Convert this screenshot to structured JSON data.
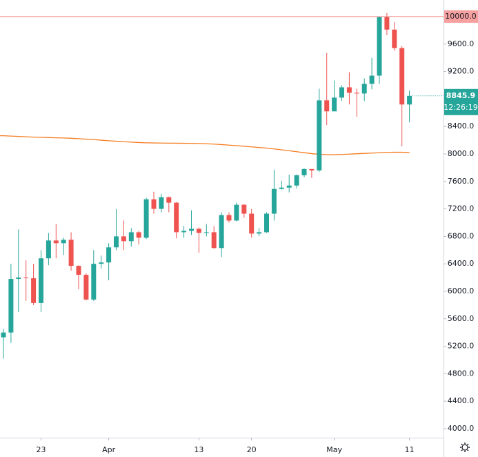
{
  "chart_data": {
    "type": "candlestick",
    "categories": [
      null,
      null,
      null,
      null,
      null,
      "23",
      null,
      null,
      null,
      null,
      null,
      null,
      null,
      null,
      "Apr",
      null,
      null,
      null,
      null,
      null,
      null,
      null,
      null,
      null,
      null,
      null,
      "13",
      null,
      null,
      null,
      null,
      null,
      null,
      "20",
      null,
      null,
      null,
      null,
      null,
      null,
      null,
      null,
      null,
      null,
      "May",
      null,
      null,
      null,
      null,
      null,
      null,
      null,
      null,
      null,
      "11"
    ],
    "open": [
      5330,
      5400,
      6180,
      6200,
      6190,
      5830,
      6480,
      6740,
      6700,
      6750,
      6370,
      6240,
      5880,
      6400,
      6420,
      6640,
      6800,
      6730,
      6860,
      6780,
      7340,
      7200,
      7370,
      7290,
      6860,
      6880,
      6910,
      6850,
      6860,
      6630,
      7110,
      7030,
      7260,
      7130,
      6840,
      6860,
      7130,
      7490,
      7510,
      7540,
      7690,
      7780,
      7760,
      8780,
      8620,
      8820,
      8970,
      8890,
      8880,
      9020,
      9140,
      9990,
      9810,
      9540,
      8720
    ],
    "high": [
      5450,
      6400,
      6900,
      6450,
      6400,
      6600,
      6850,
      6980,
      6780,
      6860,
      6380,
      6260,
      6600,
      6520,
      6700,
      7200,
      7030,
      6920,
      6880,
      7360,
      7450,
      7420,
      7380,
      7300,
      6950,
      7180,
      6930,
      6980,
      6950,
      7150,
      7150,
      7290,
      7270,
      7200,
      6920,
      7150,
      7770,
      7610,
      7700,
      7700,
      7790,
      7780,
      8950,
      9470,
      9070,
      9000,
      9190,
      8950,
      9100,
      9400,
      10000,
      10050,
      9920,
      9570,
      8920
    ],
    "low": [
      5020,
      5250,
      5700,
      5860,
      5800,
      5700,
      6380,
      6480,
      6530,
      6300,
      6030,
      5870,
      5860,
      6330,
      6160,
      6600,
      6600,
      6650,
      6680,
      6760,
      7130,
      7150,
      7150,
      6770,
      6780,
      6820,
      6560,
      6800,
      6620,
      6500,
      7000,
      7020,
      7070,
      6780,
      6800,
      6850,
      7030,
      7480,
      7440,
      7500,
      7660,
      7650,
      7740,
      8420,
      8620,
      8770,
      8720,
      8540,
      8770,
      8940,
      9020,
      9730,
      9500,
      8110,
      8460
    ],
    "close": [
      5400,
      6180,
      6200,
      6190,
      5830,
      6480,
      6740,
      6700,
      6750,
      6370,
      6240,
      5880,
      6400,
      6420,
      6640,
      6800,
      6730,
      6860,
      6780,
      7340,
      7200,
      7370,
      7290,
      6860,
      6880,
      6910,
      6850,
      6860,
      6630,
      7110,
      7030,
      7260,
      7130,
      6840,
      6860,
      7130,
      7490,
      7510,
      7540,
      7690,
      7780,
      7760,
      8780,
      8620,
      8820,
      8970,
      8890,
      8880,
      9020,
      9140,
      9990,
      9810,
      9540,
      8720,
      8845.9
    ],
    "up_color": "#26a69a",
    "down_color": "#ef5350",
    "ma": {
      "color": "#f57c20",
      "values": [
        8265,
        8260,
        8255,
        8250,
        8245,
        8242,
        8238,
        8235,
        8232,
        8228,
        8222,
        8215,
        8208,
        8200,
        8192,
        8185,
        8178,
        8172,
        8166,
        8162,
        8160,
        8158,
        8157,
        8156,
        8155,
        8154,
        8152,
        8148,
        8143,
        8136,
        8128,
        8120,
        8112,
        8103,
        8094,
        8085,
        8073,
        8060,
        8046,
        8032,
        8018,
        8004,
        7994,
        7990,
        7988,
        7992,
        7997,
        8003,
        8008,
        8012,
        8017,
        8022,
        8025,
        8024,
        8018
      ]
    },
    "level_line": {
      "value": 10000,
      "label": "10000.0",
      "color": "#ef5350"
    },
    "last_price": 8845.9,
    "countdown": "12:26:19",
    "ylim": [
      3869,
      10241
    ],
    "yticks": [
      {
        "value": 4000,
        "label": "4000.0"
      },
      {
        "value": 4400,
        "label": "4400.0"
      },
      {
        "value": 4800,
        "label": "4800.0"
      },
      {
        "value": 5200,
        "label": "5200.0"
      },
      {
        "value": 5600,
        "label": "5600.0"
      },
      {
        "value": 6000,
        "label": "6000.0"
      },
      {
        "value": 6400,
        "label": "6400.0"
      },
      {
        "value": 6800,
        "label": "6800.0"
      },
      {
        "value": 7200,
        "label": "7200.0"
      },
      {
        "value": 7600,
        "label": "7600.0"
      },
      {
        "value": 8000,
        "label": "8000.0"
      },
      {
        "value": 8400,
        "label": "8400.0"
      },
      {
        "value": 8800,
        "label": "8800.0"
      },
      {
        "value": 9200,
        "label": "9200.0"
      },
      {
        "value": 9600,
        "label": "9600.0"
      }
    ]
  }
}
